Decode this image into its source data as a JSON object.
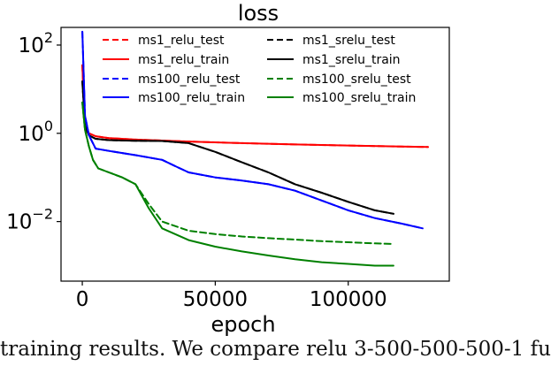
{
  "chart_data": {
    "type": "line",
    "title": "loss",
    "xlabel": "epoch",
    "ylabel": "",
    "xlim": [
      -8000,
      138000
    ],
    "ylim_log10": [
      -3.35,
      2.4
    ],
    "yscale": "log",
    "grid": false,
    "legend_placement": "top-right",
    "x_ticks": [
      0,
      50000,
      100000
    ],
    "x_tick_labels": [
      "0",
      "50000",
      "100000"
    ],
    "y_ticks_log10": [
      2,
      0,
      -2
    ],
    "y_tick_labels": [
      {
        "base": "10",
        "exp": "2"
      },
      {
        "base": "10",
        "exp": "0"
      },
      {
        "base": "10",
        "exp": "−2"
      }
    ],
    "series": [
      {
        "name": "ms1_relu_test",
        "color": "#ff0000",
        "style": "dashed",
        "x": [
          0,
          1000,
          2500,
          5000,
          10000,
          20000,
          40000,
          60000,
          80000,
          100000,
          120000,
          130000
        ],
        "y": [
          35,
          1.2,
          1.0,
          0.86,
          0.78,
          0.72,
          0.65,
          0.6,
          0.56,
          0.53,
          0.5,
          0.49
        ]
      },
      {
        "name": "ms1_relu_train",
        "color": "#ff0000",
        "style": "solid",
        "x": [
          0,
          1000,
          2500,
          5000,
          10000,
          20000,
          40000,
          60000,
          80000,
          100000,
          120000,
          130000
        ],
        "y": [
          35,
          1.2,
          1.0,
          0.86,
          0.78,
          0.72,
          0.65,
          0.6,
          0.56,
          0.53,
          0.5,
          0.49
        ]
      },
      {
        "name": "ms100_relu_test",
        "color": "#0000ff",
        "style": "dashed",
        "x": [
          0,
          1000,
          2500,
          5000,
          10000,
          20000,
          30000,
          35000,
          40000,
          50000,
          60000,
          70000,
          80000,
          90000,
          100000,
          110000,
          120000,
          128000
        ],
        "y": [
          200,
          2.5,
          0.9,
          0.45,
          0.4,
          0.32,
          0.25,
          0.18,
          0.13,
          0.1,
          0.085,
          0.07,
          0.05,
          0.03,
          0.018,
          0.012,
          0.009,
          0.007
        ]
      },
      {
        "name": "ms100_relu_train",
        "color": "#0000ff",
        "style": "solid",
        "x": [
          0,
          1000,
          2500,
          5000,
          10000,
          20000,
          30000,
          35000,
          40000,
          50000,
          60000,
          70000,
          80000,
          90000,
          100000,
          110000,
          120000,
          128000
        ],
        "y": [
          200,
          2.5,
          0.9,
          0.45,
          0.4,
          0.32,
          0.25,
          0.18,
          0.13,
          0.1,
          0.085,
          0.07,
          0.05,
          0.03,
          0.018,
          0.012,
          0.009,
          0.007
        ]
      },
      {
        "name": "ms1_srelu_test",
        "color": "#000000",
        "style": "dashed",
        "x": [
          0,
          1000,
          2500,
          5000,
          10000,
          20000,
          30000,
          40000,
          50000,
          60000,
          70000,
          80000,
          90000,
          100000,
          110000,
          117000
        ],
        "y": [
          15,
          1.5,
          0.9,
          0.75,
          0.7,
          0.68,
          0.67,
          0.6,
          0.38,
          0.22,
          0.13,
          0.07,
          0.045,
          0.028,
          0.018,
          0.015
        ]
      },
      {
        "name": "ms1_srelu_train",
        "color": "#000000",
        "style": "solid",
        "x": [
          0,
          1000,
          2500,
          5000,
          10000,
          20000,
          30000,
          40000,
          50000,
          60000,
          70000,
          80000,
          90000,
          100000,
          110000,
          117000
        ],
        "y": [
          15,
          1.5,
          0.9,
          0.75,
          0.7,
          0.68,
          0.67,
          0.6,
          0.38,
          0.22,
          0.13,
          0.07,
          0.045,
          0.028,
          0.018,
          0.015
        ]
      },
      {
        "name": "ms100_srelu_test",
        "color": "#008000",
        "style": "dashed",
        "x": [
          0,
          1000,
          2500,
          4000,
          6000,
          10000,
          15000,
          20000,
          25000,
          30000,
          40000,
          50000,
          60000,
          70000,
          80000,
          90000,
          100000,
          110000,
          117000
        ],
        "y": [
          5,
          1.2,
          0.5,
          0.25,
          0.16,
          0.13,
          0.1,
          0.07,
          0.025,
          0.01,
          0.0062,
          0.0052,
          0.0046,
          0.0042,
          0.0039,
          0.0036,
          0.0034,
          0.0032,
          0.0031
        ]
      },
      {
        "name": "ms100_srelu_train",
        "color": "#008000",
        "style": "solid",
        "x": [
          0,
          1000,
          2500,
          4000,
          6000,
          10000,
          15000,
          20000,
          25000,
          30000,
          40000,
          50000,
          60000,
          70000,
          80000,
          90000,
          100000,
          110000,
          117000
        ],
        "y": [
          5,
          1.2,
          0.5,
          0.25,
          0.16,
          0.13,
          0.1,
          0.07,
          0.02,
          0.007,
          0.0038,
          0.0027,
          0.0021,
          0.0017,
          0.0014,
          0.0012,
          0.0011,
          0.001,
          0.001
        ]
      }
    ],
    "legend_columns": [
      [
        "ms1_relu_test",
        "ms1_relu_train",
        "ms100_relu_test",
        "ms100_relu_train"
      ],
      [
        "ms1_srelu_test",
        "ms1_srelu_train",
        "ms100_srelu_test",
        "ms100_srelu_train"
      ]
    ]
  },
  "caption": "training results. We compare relu 3-500-500-500-1 fu"
}
